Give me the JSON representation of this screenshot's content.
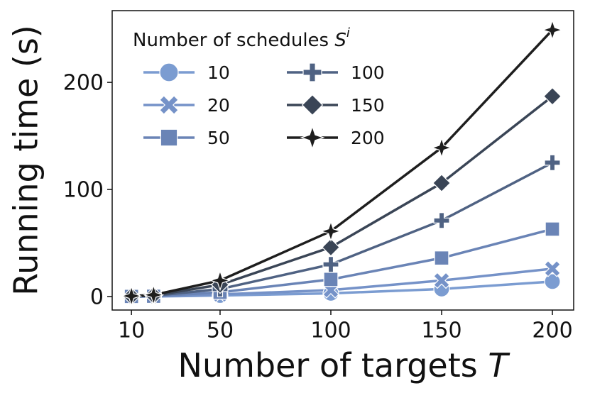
{
  "chart_data": {
    "type": "line",
    "x_label": "Number of targets",
    "x_label_symbol": "T",
    "y_label": "Running time (s)",
    "legend_title": "Number of schedules",
    "legend_title_symbol": "S",
    "legend_title_superscript": "i",
    "legend_loc": "upper left",
    "x": [
      10,
      20,
      50,
      100,
      150,
      200
    ],
    "series": [
      {
        "name": "10",
        "color": "#7b9cd1",
        "marker": "circle",
        "values": [
          0,
          0.05,
          1,
          3,
          7,
          14
        ]
      },
      {
        "name": "20",
        "color": "#7592c8",
        "marker": "x",
        "values": [
          0.05,
          0.1,
          2,
          6,
          15,
          26
        ]
      },
      {
        "name": "50",
        "color": "#6a84b6",
        "marker": "square",
        "values": [
          0.1,
          0.3,
          4,
          16,
          36,
          63
        ]
      },
      {
        "name": "100",
        "color": "#4f6283",
        "marker": "plus",
        "values": [
          0.2,
          0.7,
          7,
          30,
          71,
          125
        ]
      },
      {
        "name": "150",
        "color": "#3a4556",
        "marker": "diamond",
        "values": [
          0.3,
          1,
          11,
          46,
          106,
          187
        ]
      },
      {
        "name": "200",
        "color": "#1e1e1e",
        "marker": "star",
        "values": [
          0.5,
          1.5,
          15,
          61,
          139,
          249
        ]
      }
    ],
    "xlim": [
      1.3,
      209.6
    ],
    "xticks": [
      10,
      50,
      100,
      150,
      200
    ],
    "ylim": [
      -12.6,
      267
    ],
    "yticks": [
      0,
      100,
      200
    ]
  }
}
